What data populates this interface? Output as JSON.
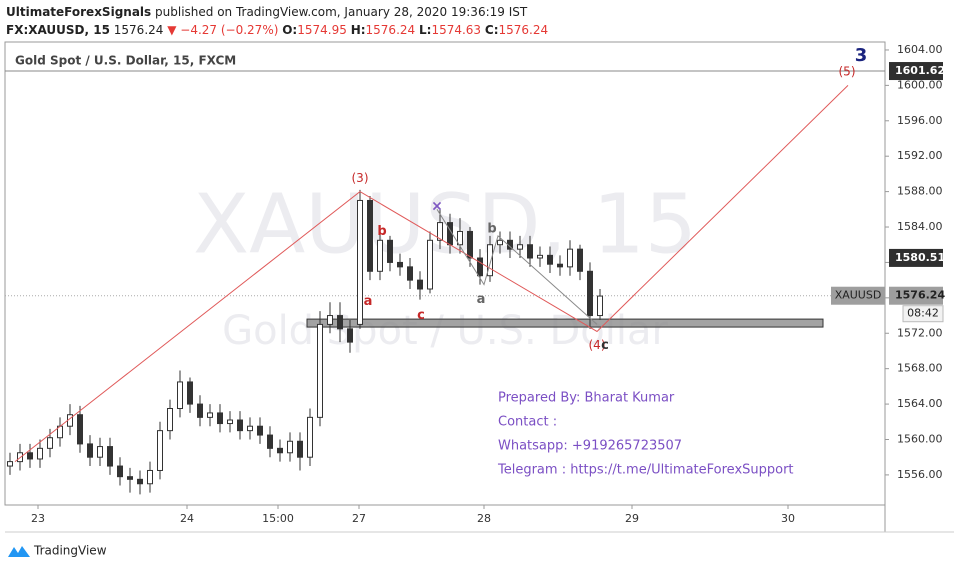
{
  "header": {
    "author": "UltimateForexSignals",
    "published": "published on TradingView.com, January 28, 2020 19:36:19 IST",
    "symbol": "FX:XAUUSD, 15",
    "last": "1576.24",
    "change": "▼ −4.27 (−0.27%)",
    "o_label": "O:",
    "o": "1574.95",
    "h_label": "H:",
    "h": "1576.24",
    "l_label": "L:",
    "l": "1574.63",
    "c_label": "C:",
    "c": "1576.24"
  },
  "chart_data": {
    "type": "candlestick",
    "title": "Gold Spot / U.S. Dollar, 15, FXCM",
    "watermark": "XAUUSD, 15",
    "watermark_sub": "Gold Spot / U.S. Dollar",
    "color": "#333333",
    "x": [
      0.5,
      1.5,
      2.5,
      3.5,
      4.5,
      5.5,
      6.5,
      7.5,
      8.5,
      9.5,
      10.5,
      11.5,
      12.5,
      13.5,
      14.5,
      15.5,
      16.5,
      17.5,
      18.5,
      19.5,
      20.5,
      21.5,
      22.5,
      23.5,
      24.5,
      25.5,
      26.5,
      27.5,
      28.5,
      29.5,
      30.5,
      31.5,
      32.5,
      33.5,
      34.5,
      35.5,
      36.5,
      37.5,
      38.5,
      39.5,
      40.5,
      41.5,
      42.5,
      43.5,
      44.5,
      45.5,
      46.5,
      47.5,
      48.5,
      49.5,
      50.5,
      51.5,
      52.5,
      53.5,
      54.5,
      55.5,
      56.5,
      57.5,
      58.5,
      59.5
    ],
    "open": [
      1557.0,
      1557.5,
      1558.5,
      1557.8,
      1559.0,
      1560.2,
      1561.5,
      1562.8,
      1559.5,
      1558.0,
      1559.2,
      1557.0,
      1555.8,
      1555.5,
      1555.0,
      1556.5,
      1561.0,
      1563.5,
      1566.5,
      1564.0,
      1562.5,
      1563.0,
      1561.8,
      1562.2,
      1561.0,
      1561.5,
      1560.5,
      1559.0,
      1558.5,
      1559.8,
      1558.0,
      1562.5,
      1573.0,
      1574.0,
      1572.5,
      1573.0,
      1587.0,
      1579.0,
      1582.5,
      1580.0,
      1579.5,
      1578.0,
      1577.0,
      1582.5,
      1584.5,
      1582.0,
      1583.5,
      1580.5,
      1578.5,
      1582.0,
      1582.5,
      1581.5,
      1582.0,
      1580.5,
      1580.8,
      1579.8,
      1579.5,
      1581.5,
      1579.0,
      1574.0
    ],
    "high": [
      1558.5,
      1559.5,
      1559.5,
      1560.0,
      1561.2,
      1562.5,
      1564.0,
      1563.8,
      1560.5,
      1560.2,
      1560.2,
      1558.0,
      1556.8,
      1556.5,
      1557.5,
      1562.0,
      1564.5,
      1567.8,
      1567.0,
      1565.0,
      1564.0,
      1564.0,
      1563.2,
      1563.2,
      1562.5,
      1562.5,
      1561.5,
      1560.0,
      1560.8,
      1560.8,
      1563.5,
      1574.5,
      1575.5,
      1575.5,
      1573.5,
      1588.2,
      1587.5,
      1583.5,
      1583.0,
      1581.0,
      1580.5,
      1579.0,
      1583.5,
      1586.0,
      1585.5,
      1585.0,
      1584.0,
      1581.5,
      1583.0,
      1583.5,
      1583.5,
      1583.0,
      1583.0,
      1581.8,
      1581.8,
      1580.8,
      1582.5,
      1582.0,
      1580.0,
      1577.0
    ],
    "low": [
      1556.0,
      1556.5,
      1556.8,
      1556.8,
      1558.0,
      1559.2,
      1560.5,
      1558.5,
      1557.0,
      1557.0,
      1556.0,
      1554.8,
      1554.0,
      1553.8,
      1554.0,
      1555.5,
      1560.0,
      1562.5,
      1563.0,
      1561.5,
      1561.5,
      1560.8,
      1560.8,
      1560.0,
      1560.0,
      1559.5,
      1558.0,
      1557.5,
      1557.5,
      1556.5,
      1557.0,
      1561.5,
      1572.0,
      1571.0,
      1569.8,
      1572.5,
      1578.0,
      1578.0,
      1579.0,
      1578.5,
      1577.0,
      1575.8,
      1576.5,
      1581.5,
      1581.0,
      1581.0,
      1579.5,
      1577.5,
      1577.8,
      1581.0,
      1580.5,
      1580.5,
      1579.5,
      1579.5,
      1578.8,
      1578.5,
      1578.5,
      1578.0,
      1572.5,
      1573.5
    ],
    "close": [
      1557.5,
      1558.5,
      1557.8,
      1559.0,
      1560.2,
      1561.5,
      1562.8,
      1559.5,
      1558.0,
      1559.2,
      1557.0,
      1555.8,
      1555.5,
      1555.0,
      1556.5,
      1561.0,
      1563.5,
      1566.5,
      1564.0,
      1562.5,
      1563.0,
      1561.8,
      1562.2,
      1561.0,
      1561.5,
      1560.5,
      1559.0,
      1558.5,
      1559.8,
      1558.0,
      1562.5,
      1573.0,
      1574.0,
      1572.5,
      1571.0,
      1587.0,
      1579.0,
      1582.5,
      1580.0,
      1579.5,
      1578.0,
      1577.0,
      1582.5,
      1584.5,
      1582.0,
      1583.5,
      1580.5,
      1578.5,
      1582.0,
      1582.5,
      1581.5,
      1582.0,
      1580.5,
      1580.8,
      1579.8,
      1579.5,
      1581.5,
      1579.0,
      1574.0,
      1576.2
    ],
    "xlim": [
      0,
      88
    ],
    "xticks": [
      {
        "value": 3.3,
        "label": "23"
      },
      {
        "value": 18.2,
        "label": "24"
      },
      {
        "value": 27.3,
        "label": "15:00"
      },
      {
        "value": 35.4,
        "label": "27"
      },
      {
        "value": 47.9,
        "label": "28"
      },
      {
        "value": 62.7,
        "label": "29"
      },
      {
        "value": 78.3,
        "label": "30"
      }
    ],
    "ylim": [
      1552.6,
      1604.9
    ],
    "yticks": [
      {
        "value": 1556,
        "label": "1556.00"
      },
      {
        "value": 1560,
        "label": "1560.00"
      },
      {
        "value": 1564,
        "label": "1564.00"
      },
      {
        "value": 1568,
        "label": "1568.00"
      },
      {
        "value": 1572,
        "label": "1572.00"
      },
      {
        "value": 1576,
        "label": "1576.00"
      },
      {
        "value": 1580,
        "label": "1580.00"
      },
      {
        "value": 1584,
        "label": "1584.00"
      },
      {
        "value": 1588,
        "label": "1588.00"
      },
      {
        "value": 1592,
        "label": "1592.00"
      },
      {
        "value": 1596,
        "label": "1596.00"
      },
      {
        "value": 1600,
        "label": "1600.00"
      },
      {
        "value": 1604,
        "label": "1604.00"
      }
    ],
    "price_lines": [
      {
        "value": 1601.62,
        "label": "1601.62",
        "color": "#2f2f2f",
        "line": "solid"
      },
      {
        "value": 1580.51,
        "label": "1580.51",
        "color": "#2f2f2f",
        "line": "none"
      },
      {
        "value": 1576.24,
        "label": "1576.24",
        "name": "XAUUSD",
        "countdown": "08:42",
        "color": "#9e9e9e",
        "line": "dotted"
      }
    ],
    "wave_lines": [
      {
        "color": "#e05a5a",
        "x": [
          1.0,
          35.5,
          59.2,
          84.3
        ],
        "y": [
          1557.5,
          1588.0,
          1572.2,
          1600.0
        ]
      },
      {
        "color": "#8a8a8a",
        "x": [
          43.2,
          47.9,
          49.3,
          59.2
        ],
        "y": [
          1586.0,
          1577.5,
          1583.0,
          1573.0
        ]
      }
    ],
    "wave_labels": [
      {
        "text": "(3)",
        "x": 35.5,
        "y": 1589.5,
        "color": "#c62828",
        "size": 12
      },
      {
        "text": "a",
        "x": 36.3,
        "y": 1575.6,
        "color": "#c62828",
        "size": 13
      },
      {
        "text": "b",
        "x": 37.7,
        "y": 1583.5,
        "color": "#c62828",
        "size": 13
      },
      {
        "text": "c",
        "x": 41.6,
        "y": 1574.0,
        "color": "#c62828",
        "size": 13
      },
      {
        "text": "×",
        "x": 43.2,
        "y": 1586.3,
        "color": "#7e57c2",
        "size": 14
      },
      {
        "text": "b",
        "x": 48.7,
        "y": 1583.8,
        "color": "#666666",
        "size": 13
      },
      {
        "text": "a",
        "x": 47.6,
        "y": 1575.8,
        "color": "#666666",
        "size": 13
      },
      {
        "text": "(4)",
        "x": 59.2,
        "y": 1570.6,
        "color": "#c62828",
        "size": 12
      },
      {
        "text": "c",
        "x": 60.0,
        "y": 1570.6,
        "color": "#333333",
        "size": 13
      },
      {
        "text": "(5)",
        "x": 84.2,
        "y": 1601.5,
        "color": "#c62828",
        "size": 12
      },
      {
        "text": "3",
        "x": 85.6,
        "y": 1603.3,
        "color": "#1a237e",
        "size": 18
      }
    ],
    "zone": {
      "x": [
        30.2,
        81.8
      ],
      "y": [
        1572.7,
        1573.6
      ],
      "color": "#8c8c8c"
    }
  },
  "notes": [
    "Prepared By:  Bharat Kumar",
    "Contact :",
    "Whatsapp: +919265723507",
    "Telegram : https://t.me/UltimateForexSupport"
  ],
  "footer": {
    "brand": "TradingView"
  }
}
